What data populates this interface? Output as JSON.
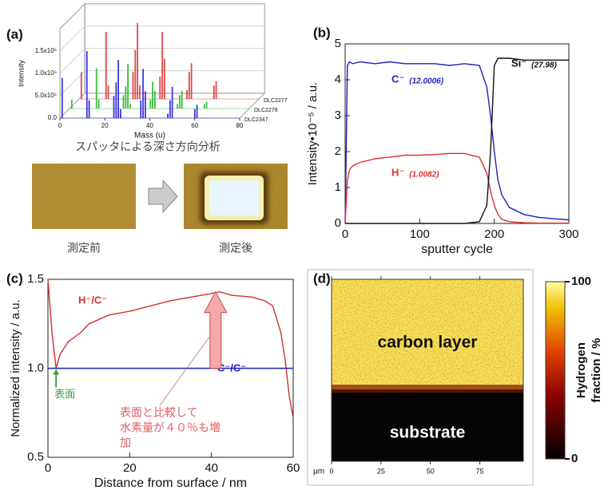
{
  "figure": {
    "caption": "スパッタによる深さ方向分析",
    "image_labels": [
      "測定前",
      "測定後"
    ]
  },
  "chart_data": [
    {
      "type": "bar3d",
      "panel_label": "(a)",
      "xlabel": "Mass (u)",
      "ylabel": "Intensity",
      "x": [
        1,
        12,
        13,
        24,
        25,
        26,
        27,
        36,
        37,
        38,
        48,
        49,
        50,
        60,
        61
      ],
      "xlim": [
        0,
        80
      ],
      "xticks": [
        0,
        20,
        40,
        60,
        80
      ],
      "ylim": [
        0,
        2000000
      ],
      "yticks": [
        {
          "value": 0,
          "label": "0.0"
        },
        {
          "value": 500000,
          "label": "5.0x10⁵"
        },
        {
          "value": 1000000,
          "label": "1.0x10⁶"
        },
        {
          "value": 1500000,
          "label": "1.5x10⁶"
        }
      ],
      "grid": true,
      "series": [
        {
          "name": "DLC2277",
          "color": "#e04848",
          "values": [
            600000,
            1500000,
            300000,
            600000,
            1100000,
            1700000,
            300000,
            500000,
            1500000,
            900000,
            200000,
            600000,
            800000,
            300000,
            400000
          ]
        },
        {
          "name": "DLC2278",
          "color": "#38c038",
          "values": [
            200000,
            900000,
            200000,
            300000,
            500000,
            1000000,
            100000,
            200000,
            600000,
            400000,
            100000,
            300000,
            400000,
            100000,
            150000
          ]
        },
        {
          "name": "DLC2347",
          "color": "#3838e0",
          "values": [
            900000,
            1500000,
            400000,
            500000,
            800000,
            1300000,
            200000,
            400000,
            1100000,
            600000,
            100000,
            400000,
            700000,
            200000,
            300000
          ]
        }
      ]
    },
    {
      "type": "line",
      "panel_label": "(b)",
      "xlabel": "sputter cycle",
      "ylabel": "Intensity•10⁻⁵ / a.u.",
      "x": [
        0,
        3,
        6,
        10,
        20,
        40,
        60,
        80,
        100,
        120,
        140,
        160,
        180,
        190,
        195,
        200,
        205,
        210,
        220,
        240,
        260,
        280,
        300
      ],
      "xlim": [
        0,
        300
      ],
      "xticks": [
        0,
        100,
        200,
        300
      ],
      "ylim": [
        0,
        5
      ],
      "yticks": [
        0,
        1,
        2,
        3,
        4,
        5
      ],
      "series": [
        {
          "name": "C⁻",
          "note": "(12.0006)",
          "color": "#2020c0",
          "values": [
            0,
            4.4,
            4.5,
            4.45,
            4.5,
            4.45,
            4.5,
            4.45,
            4.45,
            4.45,
            4.4,
            4.45,
            4.4,
            3.8,
            3.0,
            2.0,
            1.2,
            0.8,
            0.45,
            0.25,
            0.17,
            0.13,
            0.1
          ]
        },
        {
          "name": "H⁻",
          "note": "(1.0082)",
          "color": "#e03030",
          "values": [
            0,
            1.2,
            1.5,
            1.6,
            1.7,
            1.8,
            1.85,
            1.9,
            1.9,
            1.92,
            1.95,
            1.95,
            1.85,
            1.4,
            0.9,
            0.5,
            0.25,
            0.12,
            0.05,
            0.02,
            0.01,
            0.01,
            0.01
          ]
        },
        {
          "name": "Si⁻",
          "note": "(27.98)",
          "color": "#111111",
          "values": [
            0,
            0,
            0,
            0,
            0,
            0,
            0,
            0,
            0,
            0,
            0,
            0,
            0.05,
            0.5,
            2.0,
            4.4,
            4.6,
            4.6,
            4.6,
            4.55,
            4.55,
            4.55,
            4.55
          ]
        }
      ]
    },
    {
      "type": "line",
      "panel_label": "(c)",
      "xlabel": "Distance from surface / nm",
      "ylabel": "Normalized intensity / a.u.",
      "xlim": [
        0,
        60
      ],
      "xticks": [
        0,
        20,
        40,
        60
      ],
      "ylim": [
        0.5,
        1.5
      ],
      "yticks": [
        {
          "value": 0.5,
          "label": "0.5"
        },
        {
          "value": 1,
          "label": "1.0"
        },
        {
          "value": 1.5,
          "label": "1.5"
        }
      ],
      "series": [
        {
          "name": "H⁻/C⁻",
          "color": "#d03030",
          "x": [
            0,
            1,
            2,
            3,
            5,
            8,
            10,
            15,
            20,
            25,
            30,
            35,
            40,
            42,
            45,
            50,
            53,
            55,
            57,
            58,
            59,
            60
          ],
          "values": [
            1.5,
            1.2,
            1.0,
            1.08,
            1.15,
            1.2,
            1.25,
            1.3,
            1.32,
            1.35,
            1.38,
            1.4,
            1.42,
            1.43,
            1.41,
            1.4,
            1.38,
            1.35,
            1.2,
            1.05,
            0.85,
            0.72
          ]
        },
        {
          "name": "C⁻/C⁻",
          "color": "#2020c0",
          "x": [
            0,
            60
          ],
          "values": [
            1,
            1
          ]
        }
      ],
      "annotations": [
        {
          "lines": [
            "表面"
          ],
          "color": "#40a040"
        },
        {
          "lines": [
            "表面と比較して",
            "水素量が４０％も増",
            "加"
          ],
          "color": "#e06060"
        }
      ]
    },
    {
      "type": "heatmap",
      "panel_label": "(d)",
      "xlabel": "μm",
      "xlim": [
        0,
        97
      ],
      "xticks": [
        0,
        25,
        50,
        75
      ],
      "regions": [
        "carbon layer",
        "substrate"
      ],
      "colorbar": {
        "label": [
          "Hydrogen",
          "fraction / %"
        ],
        "lim": [
          0,
          100
        ],
        "ticks": [
          0,
          100
        ]
      }
    }
  ]
}
